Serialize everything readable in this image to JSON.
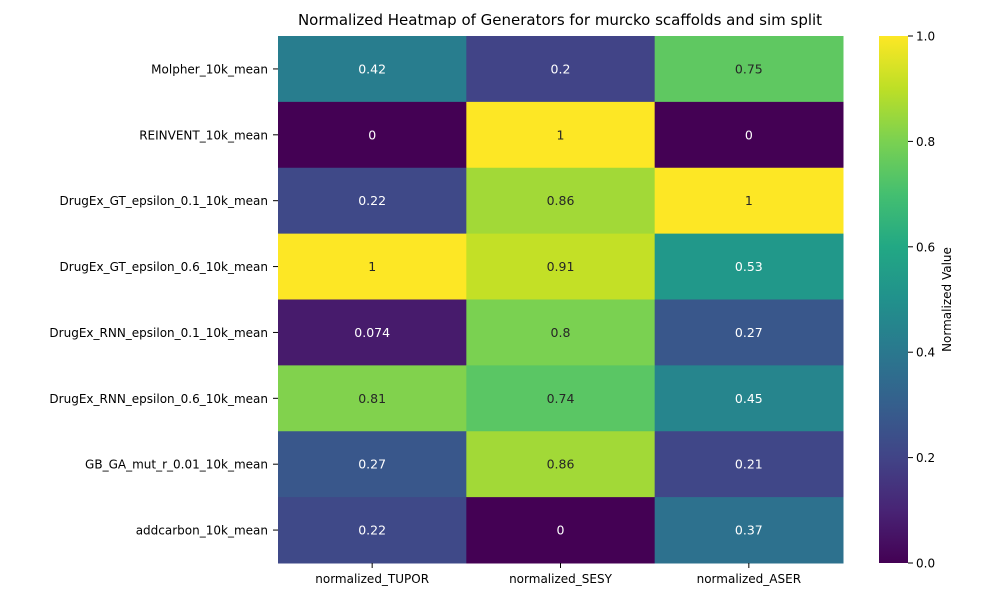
{
  "chart_data": {
    "type": "heatmap",
    "title": "Normalized Heatmap of Generators for murcko scaffolds and sim split",
    "columns": [
      "normalized_TUPOR",
      "normalized_SESY",
      "normalized_ASER"
    ],
    "rows": [
      "Molpher_10k_mean",
      "REINVENT_10k_mean",
      "DrugEx_GT_epsilon_0.1_10k_mean",
      "DrugEx_GT_epsilon_0.6_10k_mean",
      "DrugEx_RNN_epsilon_0.1_10k_mean",
      "DrugEx_RNN_epsilon_0.6_10k_mean",
      "GB_GA_mut_r_0.01_10k_mean",
      "addcarbon_10k_mean"
    ],
    "values": [
      [
        0.42,
        0.2,
        0.75
      ],
      [
        0,
        1,
        0
      ],
      [
        0.22,
        0.86,
        1
      ],
      [
        1,
        0.91,
        0.53
      ],
      [
        0.074,
        0.8,
        0.27
      ],
      [
        0.81,
        0.74,
        0.45
      ],
      [
        0.27,
        0.86,
        0.21
      ],
      [
        0.22,
        0,
        0.37
      ]
    ],
    "value_labels": [
      [
        "0.42",
        "0.2",
        "0.75"
      ],
      [
        "0",
        "1",
        "0"
      ],
      [
        "0.22",
        "0.86",
        "1"
      ],
      [
        "1",
        "0.91",
        "0.53"
      ],
      [
        "0.074",
        "0.8",
        "0.27"
      ],
      [
        "0.81",
        "0.74",
        "0.45"
      ],
      [
        "0.27",
        "0.86",
        "0.21"
      ],
      [
        "0.22",
        "0",
        "0.37"
      ]
    ],
    "colormap": "viridis",
    "colorbar": {
      "label": "Normalized Value",
      "range": [
        0,
        1
      ],
      "ticks": [
        "0.0",
        "0.2",
        "0.4",
        "0.6",
        "0.8",
        "1.0"
      ]
    }
  }
}
